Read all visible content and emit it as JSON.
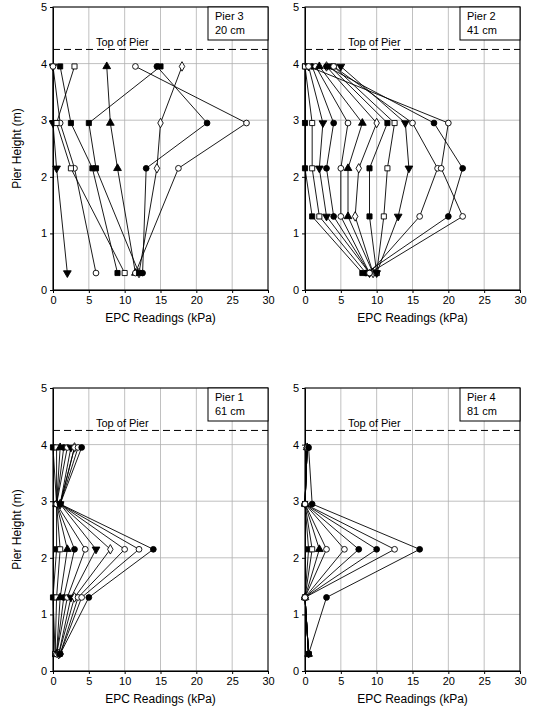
{
  "chart_data": [
    {
      "type": "line",
      "orientation": "horizontal",
      "title": "Pier 3",
      "subtitle": "20 cm",
      "x_label": "EPC Readings (kPa)",
      "y_label": "Pier Height (m)",
      "xlim": [
        0,
        30
      ],
      "xticks": [
        0,
        5,
        10,
        15,
        20,
        25,
        30
      ],
      "ylim": [
        0,
        5
      ],
      "yticks": [
        0,
        1,
        2,
        3,
        4,
        5
      ],
      "grid": true,
      "color": "#000000",
      "line_style": "solid",
      "annotations": [
        {
          "text": "Top of Pier",
          "y": 4.25
        }
      ],
      "x": [
        0.3,
        2.15,
        2.95,
        3.95
      ],
      "series": [
        {
          "marker": "triangle-down",
          "values": [
            2,
            0.5,
            0,
            0
          ]
        },
        {
          "marker": "open-circle",
          "values": [
            6,
            3,
            1,
            0
          ]
        },
        {
          "marker": "square",
          "values": [
            9,
            5.5,
            2.5,
            1
          ]
        },
        {
          "marker": "open-square",
          "values": [
            10,
            2.5,
            0.5,
            3
          ]
        },
        {
          "marker": "triangle",
          "values": [
            11.5,
            9,
            8,
            7.5
          ]
        },
        {
          "marker": "open-diamond",
          "values": [
            12,
            14.5,
            15,
            18
          ]
        },
        {
          "marker": "circle",
          "values": [
            12.5,
            13,
            21.5,
            14.5
          ]
        },
        {
          "marker": "open-circle",
          "values": [
            11.5,
            17.5,
            27,
            11.5
          ]
        },
        {
          "marker": "square",
          "values": [
            12,
            6,
            5,
            15
          ]
        }
      ]
    },
    {
      "type": "line",
      "orientation": "horizontal",
      "title": "Pier 2",
      "subtitle": "41 cm",
      "x_label": "EPC Readings (kPa)",
      "xlim": [
        0,
        30
      ],
      "xticks": [
        0,
        5,
        10,
        15,
        20,
        25,
        30
      ],
      "ylim": [
        0,
        5
      ],
      "yticks": [
        0,
        1,
        2,
        3,
        4,
        5
      ],
      "grid": true,
      "color": "#000000",
      "line_style": "solid",
      "annotations": [
        {
          "text": "Top of Pier",
          "y": 4.25
        }
      ],
      "x": [
        0.3,
        1.3,
        2.15,
        2.95,
        3.95
      ],
      "series": [
        {
          "marker": "square",
          "values": [
            8,
            1,
            0,
            0,
            0
          ]
        },
        {
          "marker": "open-square",
          "values": [
            8.5,
            2,
            1,
            1,
            0
          ]
        },
        {
          "marker": "triangle-down",
          "values": [
            9,
            3,
            2,
            2.5,
            0.5
          ]
        },
        {
          "marker": "circle",
          "values": [
            9,
            4,
            3,
            4,
            1
          ]
        },
        {
          "marker": "open-circle",
          "values": [
            9,
            5,
            5,
            6,
            1.5
          ]
        },
        {
          "marker": "triangle",
          "values": [
            9.5,
            6,
            6,
            8,
            2
          ]
        },
        {
          "marker": "open-diamond",
          "values": [
            9.5,
            7,
            7.5,
            10,
            3
          ]
        },
        {
          "marker": "square",
          "values": [
            10,
            9,
            9,
            11.5,
            3.5
          ]
        },
        {
          "marker": "open-square",
          "values": [
            10,
            11,
            11.5,
            12.5,
            4
          ]
        },
        {
          "marker": "triangle-down",
          "values": [
            10,
            13,
            14.5,
            14,
            5
          ]
        },
        {
          "marker": "open-circle",
          "values": [
            9,
            16,
            18.5,
            15,
            4
          ]
        },
        {
          "marker": "circle",
          "values": [
            8.5,
            20,
            22,
            18,
            3
          ]
        },
        {
          "marker": "open-circle",
          "values": [
            9,
            22,
            19,
            20,
            0.5
          ]
        }
      ]
    },
    {
      "type": "line",
      "orientation": "horizontal",
      "title": "Pier 1",
      "subtitle": "61 cm",
      "x_label": "EPC Readings (kPa)",
      "y_label": "Pier Height (m)",
      "xlim": [
        0,
        30
      ],
      "xticks": [
        0,
        5,
        10,
        15,
        20,
        25,
        30
      ],
      "ylim": [
        0,
        5
      ],
      "yticks": [
        0,
        1,
        2,
        3,
        4,
        5
      ],
      "grid": true,
      "color": "#000000",
      "line_style": "solid",
      "annotations": [
        {
          "text": "Top of Pier",
          "y": 4.25
        }
      ],
      "x": [
        0.3,
        1.3,
        2.15,
        2.95,
        3.95
      ],
      "series": [
        {
          "marker": "square",
          "values": [
            0.3,
            0,
            0.5,
            0.5,
            0
          ]
        },
        {
          "marker": "open-square",
          "values": [
            0.3,
            0.5,
            1,
            0.5,
            0.5
          ]
        },
        {
          "marker": "triangle",
          "values": [
            0.5,
            1,
            2,
            0.5,
            1
          ]
        },
        {
          "marker": "circle",
          "values": [
            0.5,
            1.5,
            3,
            0.5,
            1.5
          ]
        },
        {
          "marker": "open-circle",
          "values": [
            0.5,
            2,
            4.5,
            0.5,
            2
          ]
        },
        {
          "marker": "triangle-down",
          "values": [
            0.8,
            2.5,
            6,
            1,
            2.5
          ]
        },
        {
          "marker": "open-diamond",
          "values": [
            0.8,
            3,
            8,
            1,
            3
          ]
        },
        {
          "marker": "open-circle",
          "values": [
            1,
            3.5,
            10,
            1,
            3
          ]
        },
        {
          "marker": "open-circle",
          "values": [
            1,
            4,
            12,
            1,
            3.5
          ]
        },
        {
          "marker": "circle",
          "values": [
            1,
            5,
            14,
            1,
            4
          ]
        }
      ]
    },
    {
      "type": "line",
      "orientation": "horizontal",
      "title": "Pier 4",
      "subtitle": "81 cm",
      "x_label": "EPC Readings (kPa)",
      "xlim": [
        0,
        30
      ],
      "xticks": [
        0,
        5,
        10,
        15,
        20,
        25,
        30
      ],
      "ylim": [
        0,
        5
      ],
      "yticks": [
        0,
        1,
        2,
        3,
        4,
        5
      ],
      "grid": true,
      "color": "#000000",
      "line_style": "solid",
      "annotations": [
        {
          "text": "Top of Pier",
          "y": 4.25
        }
      ],
      "x": [
        0.3,
        1.3,
        2.15,
        2.95,
        3.95
      ],
      "series": [
        {
          "marker": "square",
          "values": [
            0.5,
            0,
            0.5,
            0,
            0.3
          ]
        },
        {
          "marker": "open-square",
          "values": [
            0.5,
            0,
            1,
            0,
            0.3
          ]
        },
        {
          "marker": "triangle",
          "values": [
            0.5,
            0,
            2,
            0,
            0.3
          ]
        },
        {
          "marker": "open-circle",
          "values": [
            0.5,
            0,
            3,
            0,
            0.3
          ]
        },
        {
          "marker": "open-circle",
          "values": [
            0.5,
            0,
            5.5,
            0,
            0.3
          ]
        },
        {
          "marker": "circle",
          "values": [
            0.5,
            0,
            7.5,
            0,
            0.3
          ]
        },
        {
          "marker": "circle",
          "values": [
            0.5,
            0,
            10,
            0,
            0.3
          ]
        },
        {
          "marker": "open-circle",
          "values": [
            0.5,
            0,
            12.5,
            0,
            0.3
          ]
        },
        {
          "marker": "circle",
          "values": [
            0.5,
            3,
            16,
            1,
            0.5
          ]
        }
      ]
    }
  ]
}
